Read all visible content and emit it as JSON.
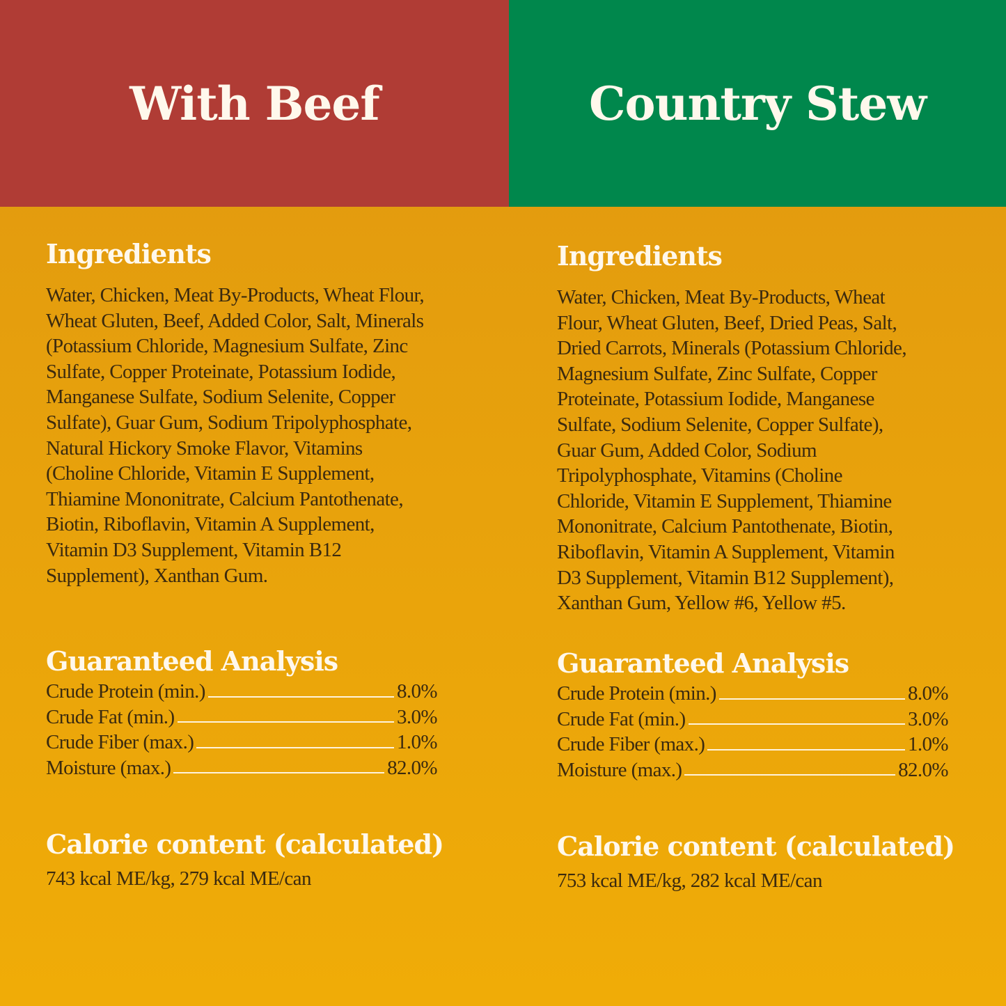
{
  "colors": {
    "left_header": "#b03c35",
    "right_header": "#00874c",
    "background": "#e8a20c"
  },
  "left": {
    "title": "With Beef",
    "ingredients_heading": "Ingredients",
    "ingredients_lines": [
      "Water, Chicken, Meat By-Products, Wheat Flour,",
      "Wheat Gluten, Beef, Added Color, Salt, Minerals",
      "(Potassium Chloride, Magnesium Sulfate, Zinc",
      "Sulfate, Copper Proteinate, Potassium Iodide,",
      "Manganese Sulfate, Sodium Selenite, Copper",
      "Sulfate), Guar Gum, Sodium Tripolyphosphate,",
      "Natural Hickory Smoke Flavor, Vitamins",
      "(Choline Chloride, Vitamin E Supplement,",
      "Thiamine Mononitrate, Calcium Pantothenate,",
      "Biotin, Riboflavin, Vitamin A Supplement,",
      "Vitamin D3 Supplement, Vitamin B12",
      "Supplement), Xanthan Gum."
    ],
    "analysis_heading": "Guaranteed Analysis",
    "analysis": [
      {
        "label": "Crude Protein (min.)",
        "value": "8.0%"
      },
      {
        "label": "Crude Fat (min.)",
        "value": "3.0%"
      },
      {
        "label": "Crude Fiber (max.)",
        "value": "1.0%"
      },
      {
        "label": "Moisture (max.)",
        "value": "82.0%"
      }
    ],
    "calorie_heading": "Calorie content (calculated)",
    "calorie_text": "743 kcal ME/kg, 279 kcal ME/can"
  },
  "right": {
    "title": "Country Stew",
    "ingredients_heading": "Ingredients",
    "ingredients_lines": [
      "Water, Chicken, Meat By-Products, Wheat",
      "Flour, Wheat Gluten, Beef, Dried Peas, Salt,",
      "Dried Carrots, Minerals (Potassium Chloride,",
      "Magnesium Sulfate, Zinc Sulfate, Copper",
      "Proteinate, Potassium Iodide, Manganese",
      "Sulfate, Sodium Selenite, Copper Sulfate),",
      "Guar Gum, Added Color, Sodium",
      "Tripolyphosphate, Vitamins (Choline",
      "Chloride, Vitamin E Supplement, Thiamine",
      "Mononitrate, Calcium Pantothenate, Biotin,",
      "Riboflavin, Vitamin A Supplement, Vitamin",
      "D3 Supplement, Vitamin B12 Supplement),",
      "Xanthan Gum, Yellow #6, Yellow #5."
    ],
    "analysis_heading": "Guaranteed Analysis",
    "analysis": [
      {
        "label": "Crude Protein (min.)",
        "value": "8.0%"
      },
      {
        "label": "Crude Fat (min.)",
        "value": "3.0%"
      },
      {
        "label": "Crude Fiber (max.)",
        "value": "1.0%"
      },
      {
        "label": "Moisture (max.)",
        "value": "82.0%"
      }
    ],
    "calorie_heading": "Calorie content (calculated)",
    "calorie_text": "753 kcal ME/kg, 282 kcal ME/can"
  }
}
